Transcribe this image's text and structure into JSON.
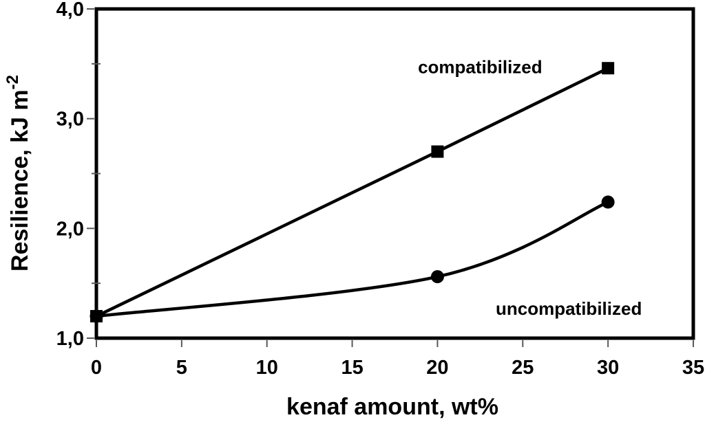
{
  "figure": {
    "background": "#ffffff",
    "foreground": "#000000"
  },
  "chart_data": {
    "type": "line",
    "title": "",
    "xlabel": "kenaf amount, wt%",
    "ylabel": {
      "text": "Resilience, kJ m",
      "superscript": "-2"
    },
    "xlim": [
      0,
      35
    ],
    "ylim": [
      1.0,
      4.0
    ],
    "grid": "off",
    "legend_position": "none (inline text annotations)",
    "line_color": "#000000",
    "tick_color": "#595959",
    "x_ticks": [
      {
        "v": 0,
        "label": "0"
      },
      {
        "v": 5,
        "label": "5"
      },
      {
        "v": 10,
        "label": "10"
      },
      {
        "v": 15,
        "label": "15"
      },
      {
        "v": 20,
        "label": "20"
      },
      {
        "v": 25,
        "label": "25"
      },
      {
        "v": 30,
        "label": "30"
      },
      {
        "v": 35,
        "label": "35"
      }
    ],
    "y_ticks_major": [
      {
        "v": 1.0,
        "label": "1,0"
      },
      {
        "v": 2.0,
        "label": "2,0"
      },
      {
        "v": 3.0,
        "label": "3,0"
      },
      {
        "v": 4.0,
        "label": "4,0"
      }
    ],
    "y_ticks_minor": [
      1.5,
      2.5,
      3.5
    ],
    "series": [
      {
        "name": "uncompatibilized",
        "marker": "circle",
        "smooth": true,
        "points": [
          [
            0,
            1.2
          ],
          [
            20,
            1.56
          ],
          [
            30,
            2.24
          ]
        ]
      },
      {
        "name": "compatibilized",
        "marker": "square",
        "smooth": false,
        "points": [
          [
            0,
            1.2
          ],
          [
            20,
            2.7
          ],
          [
            30,
            3.46
          ]
        ]
      }
    ],
    "annotations": [
      {
        "text": "compatibilized",
        "x": 22.5,
        "y": 3.47
      },
      {
        "text": "uncompatibilized",
        "x": 27.7,
        "y": 1.27
      }
    ]
  }
}
